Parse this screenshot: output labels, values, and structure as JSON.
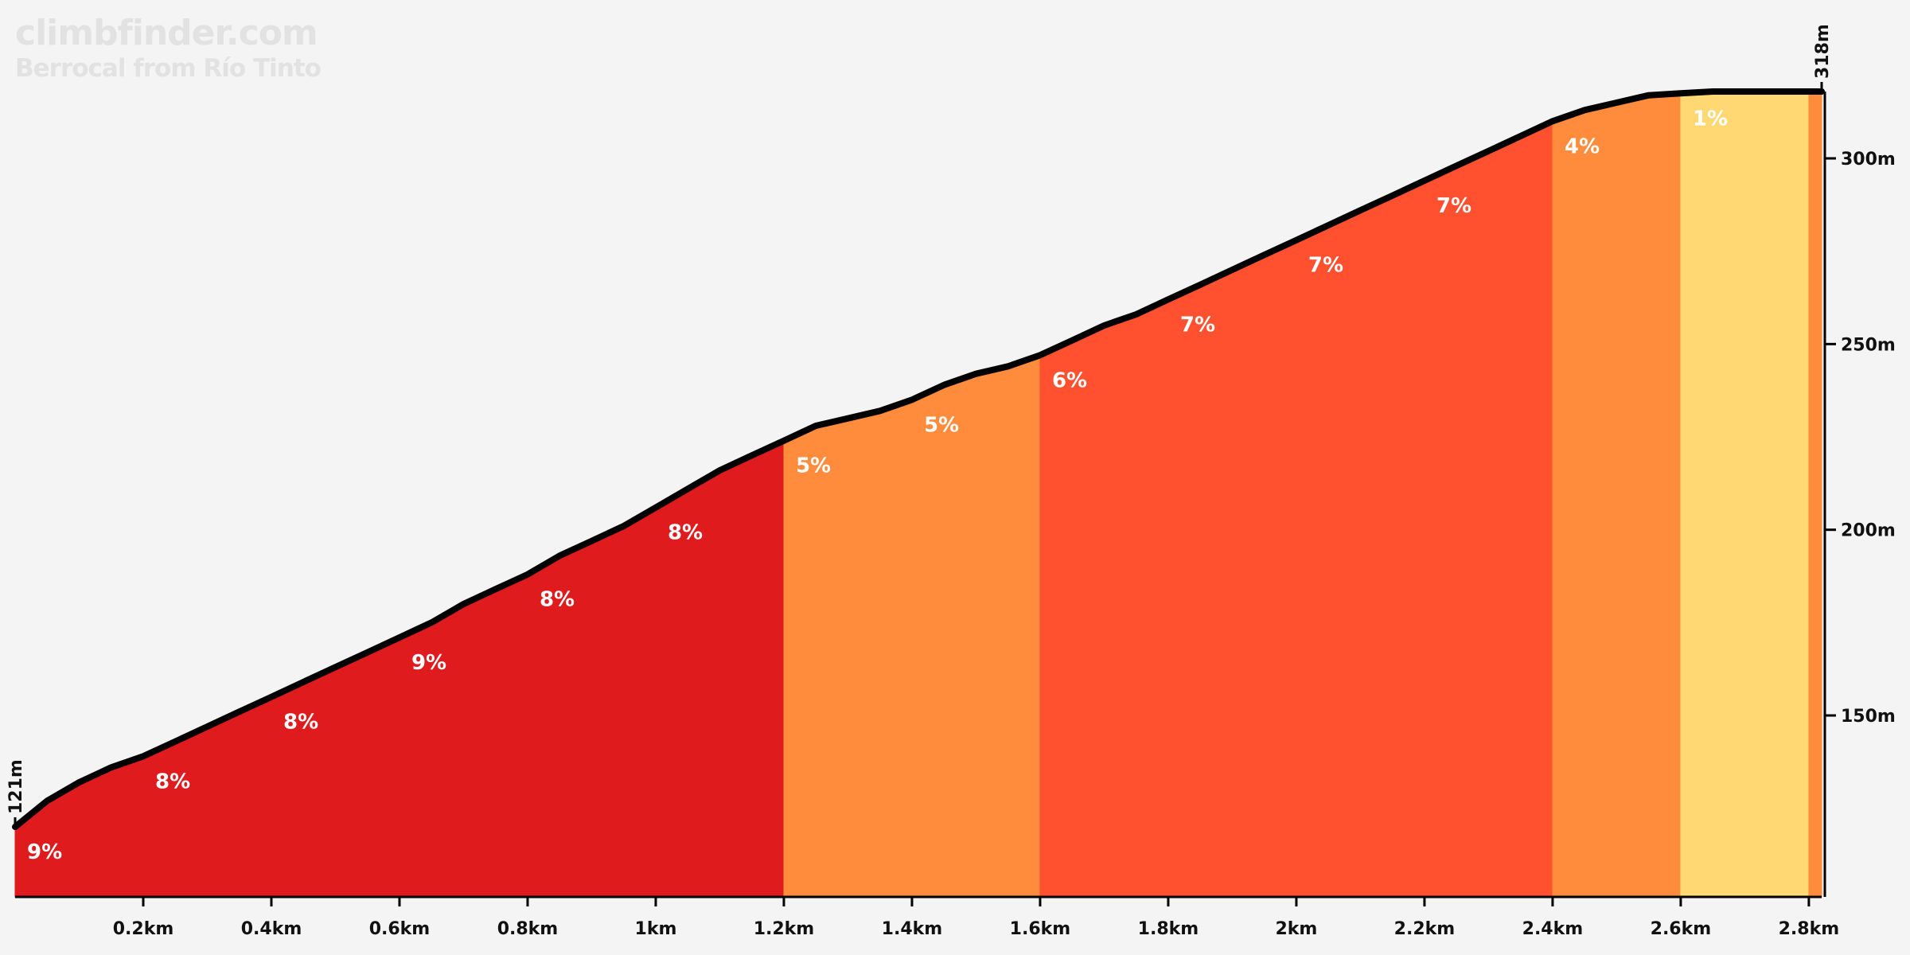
{
  "header": {
    "site": "climbfinder.com",
    "climb_name": "Berrocal from Río Tinto"
  },
  "chart_data": {
    "type": "area",
    "title": "Berrocal from Río Tinto",
    "xlabel": "",
    "ylabel": "",
    "xlim": [
      0,
      2.82
    ],
    "ylim": [
      101,
      325
    ],
    "grid": false,
    "x_ticks": [
      {
        "value": 0.2,
        "label": "0.2km"
      },
      {
        "value": 0.4,
        "label": "0.4km"
      },
      {
        "value": 0.6,
        "label": "0.6km"
      },
      {
        "value": 0.8,
        "label": "0.8km"
      },
      {
        "value": 1.0,
        "label": "1km"
      },
      {
        "value": 1.2,
        "label": "1.2km"
      },
      {
        "value": 1.4,
        "label": "1.4km"
      },
      {
        "value": 1.6,
        "label": "1.6km"
      },
      {
        "value": 1.8,
        "label": "1.8km"
      },
      {
        "value": 2.0,
        "label": "2km"
      },
      {
        "value": 2.2,
        "label": "2.2km"
      },
      {
        "value": 2.4,
        "label": "2.4km"
      },
      {
        "value": 2.6,
        "label": "2.6km"
      },
      {
        "value": 2.8,
        "label": "2.8km"
      }
    ],
    "y_ticks": [
      {
        "value": 150,
        "label": "150m"
      },
      {
        "value": 200,
        "label": "200m"
      },
      {
        "value": 250,
        "label": "250m"
      },
      {
        "value": 300,
        "label": "300m"
      }
    ],
    "start_label": "121m",
    "end_label": "318m",
    "profile": {
      "x": [
        0,
        0.05,
        0.1,
        0.15,
        0.2,
        0.25,
        0.3,
        0.35,
        0.4,
        0.45,
        0.5,
        0.55,
        0.6,
        0.65,
        0.7,
        0.75,
        0.8,
        0.85,
        0.9,
        0.95,
        1.0,
        1.05,
        1.1,
        1.15,
        1.2,
        1.25,
        1.3,
        1.35,
        1.4,
        1.45,
        1.5,
        1.55,
        1.6,
        1.65,
        1.7,
        1.75,
        1.8,
        1.85,
        1.9,
        1.95,
        2.0,
        2.05,
        2.1,
        2.15,
        2.2,
        2.25,
        2.3,
        2.35,
        2.4,
        2.45,
        2.5,
        2.55,
        2.6,
        2.65,
        2.7,
        2.75,
        2.8,
        2.82
      ],
      "y": [
        120,
        127,
        132,
        136,
        139,
        143,
        147,
        151,
        155,
        159,
        163,
        167,
        171,
        175,
        180,
        184,
        188,
        193,
        197,
        201,
        206,
        211,
        216,
        220,
        224,
        228,
        230,
        232,
        235,
        239,
        242,
        244,
        247,
        251,
        255,
        258,
        262,
        266,
        270,
        274,
        278,
        282,
        286,
        290,
        294,
        298,
        302,
        306,
        310,
        313,
        315,
        317,
        317.5,
        318,
        318,
        318,
        318,
        318
      ]
    },
    "segments": [
      {
        "start": 0.0,
        "end": 1.2,
        "color": "#e01b1e"
      },
      {
        "start": 1.2,
        "end": 1.6,
        "color": "#ff8c3c"
      },
      {
        "start": 1.6,
        "end": 2.4,
        "color": "#ff5030"
      },
      {
        "start": 2.4,
        "end": 2.6,
        "color": "#ff8c3c"
      },
      {
        "start": 2.6,
        "end": 2.8,
        "color": "#ffd873"
      },
      {
        "start": 2.8,
        "end": 2.82,
        "color": "#ff8c3c"
      }
    ],
    "grade_labels": [
      {
        "x": 0.0,
        "label": "9%"
      },
      {
        "x": 0.2,
        "label": "8%"
      },
      {
        "x": 0.4,
        "label": "8%"
      },
      {
        "x": 0.6,
        "label": "9%"
      },
      {
        "x": 0.8,
        "label": "8%"
      },
      {
        "x": 1.0,
        "label": "8%"
      },
      {
        "x": 1.2,
        "label": "5%"
      },
      {
        "x": 1.4,
        "label": "5%"
      },
      {
        "x": 1.6,
        "label": "6%"
      },
      {
        "x": 1.8,
        "label": "7%"
      },
      {
        "x": 2.0,
        "label": "7%"
      },
      {
        "x": 2.2,
        "label": "7%"
      },
      {
        "x": 2.4,
        "label": "4%"
      },
      {
        "x": 2.6,
        "label": "1%"
      }
    ]
  }
}
